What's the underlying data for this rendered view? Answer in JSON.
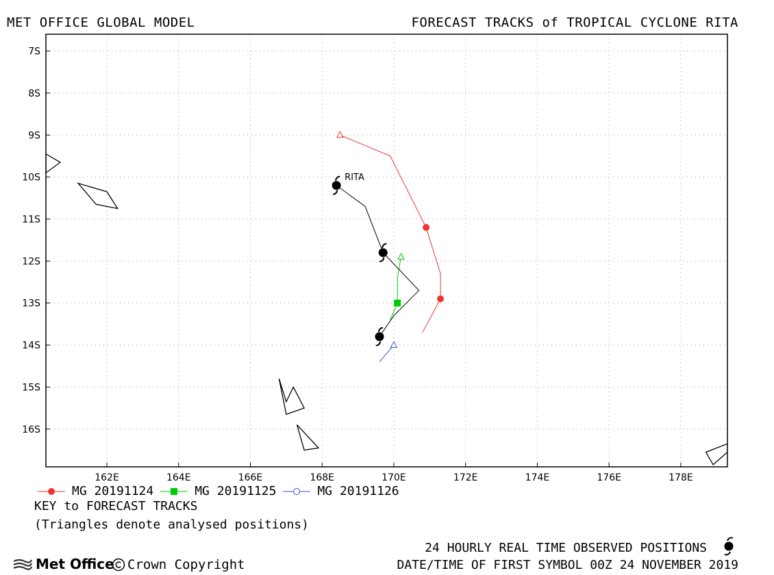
{
  "header": {
    "left_title": "MET OFFICE GLOBAL MODEL",
    "right_title": "FORECAST TRACKS of TROPICAL CYCLONE RITA"
  },
  "chart_data": {
    "type": "line",
    "title": "FORECAST TRACKS of TROPICAL CYCLONE RITA",
    "xlim": [
      160.3,
      179.3
    ],
    "ylim": [
      -16.9,
      -6.6
    ],
    "x_ticks": [
      162,
      164,
      166,
      168,
      170,
      172,
      174,
      176,
      178
    ],
    "x_tick_labels": [
      "162E",
      "164E",
      "166E",
      "168E",
      "170E",
      "172E",
      "174E",
      "176E",
      "178E"
    ],
    "y_ticks": [
      -7,
      -8,
      -9,
      -10,
      -11,
      -12,
      -13,
      -14,
      -15,
      -16
    ],
    "y_tick_labels": [
      "7S",
      "8S",
      "9S",
      "10S",
      "11S",
      "12S",
      "13S",
      "14S",
      "15S",
      "16S"
    ],
    "grid": true,
    "observed": {
      "name": "RITA",
      "color": "#000000",
      "track": [
        [
          168.4,
          -10.2
        ],
        [
          169.2,
          -10.7
        ],
        [
          169.7,
          -11.8
        ],
        [
          170.7,
          -12.7
        ],
        [
          170.0,
          -13.3
        ],
        [
          169.6,
          -13.8
        ]
      ],
      "symbols": [
        [
          168.4,
          -10.2
        ],
        [
          169.7,
          -11.8
        ],
        [
          169.6,
          -13.8
        ]
      ]
    },
    "series": [
      {
        "name": "MG 20191124",
        "color": "#ee3333",
        "marker": "filled-circle",
        "track": [
          [
            168.5,
            -9.0
          ],
          [
            169.9,
            -9.5
          ],
          [
            170.9,
            -11.2
          ],
          [
            171.3,
            -12.3
          ],
          [
            171.3,
            -12.9
          ],
          [
            170.8,
            -13.7
          ]
        ],
        "analysed": [
          168.5,
          -9.0
        ],
        "markers": [
          [
            170.9,
            -11.2
          ],
          [
            171.3,
            -12.9
          ]
        ]
      },
      {
        "name": "MG 20191125",
        "color": "#00cc00",
        "marker": "filled-square",
        "track": [
          [
            170.2,
            -11.9
          ],
          [
            170.1,
            -12.4
          ],
          [
            170.1,
            -13.0
          ],
          [
            169.9,
            -13.4
          ]
        ],
        "analysed": [
          170.2,
          -11.9
        ],
        "markers": [
          [
            170.1,
            -13.0
          ]
        ]
      },
      {
        "name": "MG 20191126",
        "color": "#3355dd",
        "marker": "open-circle",
        "track": [
          [
            170.0,
            -14.0
          ],
          [
            169.6,
            -14.4
          ]
        ],
        "analysed": [
          170.0,
          -14.0
        ],
        "markers": []
      }
    ],
    "islands": [
      [
        [
          160.3,
          -9.45
        ],
        [
          160.7,
          -9.65
        ],
        [
          160.3,
          -9.9
        ]
      ],
      [
        [
          161.2,
          -10.15
        ],
        [
          162.0,
          -10.35
        ],
        [
          162.3,
          -10.75
        ],
        [
          161.7,
          -10.65
        ]
      ],
      [
        [
          166.8,
          -14.8
        ],
        [
          167.0,
          -15.35
        ],
        [
          167.2,
          -15.0
        ],
        [
          167.5,
          -15.5
        ],
        [
          167.0,
          -15.65
        ]
      ],
      [
        [
          167.3,
          -15.9
        ],
        [
          167.9,
          -16.45
        ],
        [
          167.5,
          -16.5
        ]
      ],
      [
        [
          178.7,
          -16.55
        ],
        [
          179.3,
          -16.35
        ],
        [
          179.3,
          -16.55
        ],
        [
          178.9,
          -16.85
        ]
      ]
    ]
  },
  "legend": {
    "items": [
      {
        "label": "MG 20191124",
        "color": "#ee3333",
        "marker": "filled-circle"
      },
      {
        "label": "MG 20191125",
        "color": "#00cc00",
        "marker": "filled-square"
      },
      {
        "label": "MG 20191126",
        "color": "#3355dd",
        "marker": "open-circle"
      }
    ]
  },
  "key": {
    "title": "KEY to FORECAST TRACKS",
    "note": "(Triangles denote analysed positions)"
  },
  "footer": {
    "observed_label": "24 HOURLY REAL TIME OBSERVED POSITIONS",
    "datetime": "DATE/TIME OF FIRST SYMBOL 00Z 24 NOVEMBER 2019",
    "logo_text": "Met Office",
    "copyright": "Crown Copyright"
  }
}
